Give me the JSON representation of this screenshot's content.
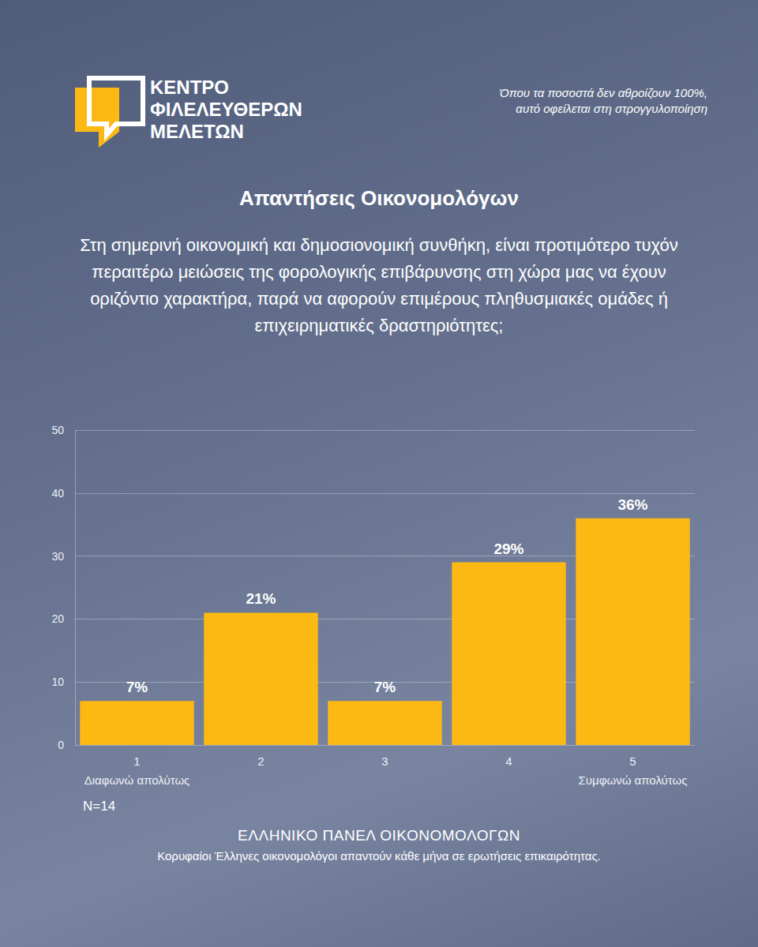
{
  "page": {
    "logo": [
      "ΚΕΝΤΡΟ",
      "ΦΙΛΕΛΕΥΘΕΡΩΝ",
      "ΜΕΛΕΤΩΝ"
    ],
    "note": [
      "Όπου τα ποσοστά δεν αθροίζουν 100%,",
      "αυτό οφείλεται στη στρογγυλοποίηση"
    ],
    "sample_note": "N=14",
    "footer_title": "ΕΛΛΗΝΙΚΟ ΠΑΝΕΛ ΟΙΚΟΝΟΜΟΛΟΓΩΝ",
    "footer_subtitle": "Κορυφαίοι Έλληνες οικονομολόγοι απαντούν κάθε μήνα σε ερωτήσεις επικαιρότητας."
  },
  "chart_data": {
    "type": "bar",
    "title": "Απαντήσεις Οικονομολόγων",
    "subtitle": "Στη σημερινή οικονομική και δημοσιονομική συνθήκη, είναι προτιμότερο τυχόν περαιτέρω μειώσεις της φορολογικής επιβάρυνσης στη χώρα μας να έχουν οριζόντιο χαρακτήρα, παρά να αφορούν επιμέρους πληθυσμιακές ομάδες ή επιχειρηματικές δραστηριότητες;",
    "categories": [
      "1",
      "2",
      "3",
      "4",
      "5"
    ],
    "values": [
      7,
      21,
      7,
      29,
      36
    ],
    "value_labels": [
      "7%",
      "21%",
      "7%",
      "29%",
      "36%"
    ],
    "annotations": [
      {
        "category": "1",
        "text": "Διαφωνώ απολύτως"
      },
      {
        "category": "5",
        "text": "Συμφωνώ απολύτως"
      }
    ],
    "color": "#fdb913",
    "ylim": [
      0,
      50
    ],
    "yticks": [
      0,
      10,
      20,
      30,
      40,
      50
    ],
    "grid": true,
    "data_labels": true
  }
}
